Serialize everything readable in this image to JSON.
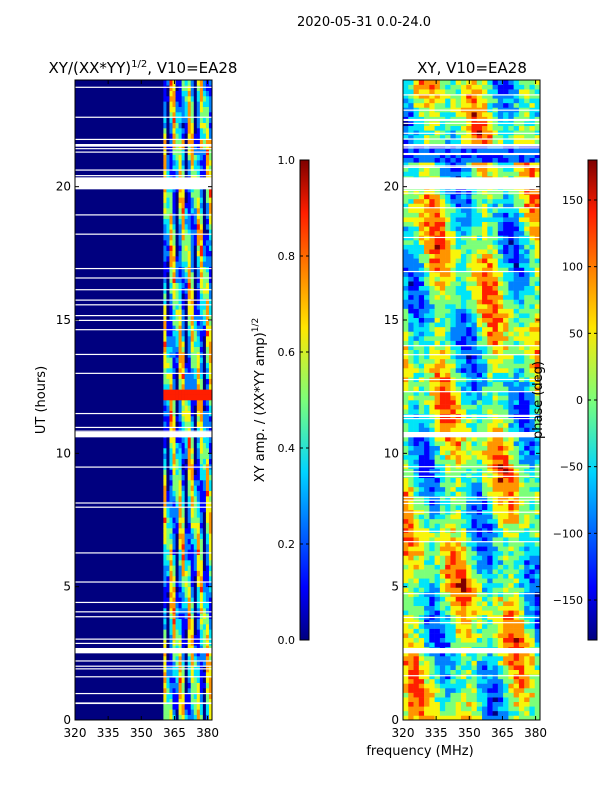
{
  "figure": {
    "suptitle": "2020-05-31 0.0-24.0",
    "xlabel": "frequency (MHz)",
    "ylabel": "UT (hours)"
  },
  "colormap": [
    "#00007f",
    "#0000ff",
    "#0080ff",
    "#00e5f8",
    "#7cff79",
    "#f8f50a",
    "#ff9400",
    "#ff1e00",
    "#7f0000"
  ],
  "chart_data": [
    {
      "type": "heatmap",
      "panel": "left",
      "title": "XY/(XX*YY)",
      "title_sup": "1/2",
      "title_suffix": ", V10=EA28",
      "xlabel": "frequency (MHz)",
      "ylabel": "UT (hours)",
      "xlim": [
        320,
        382
      ],
      "ylim": [
        0,
        24
      ],
      "xticks": [
        320,
        335,
        350,
        365,
        380
      ],
      "yticks": [
        0,
        5,
        10,
        15,
        20
      ],
      "data_start_freq": 360,
      "data_channels": [
        362,
        365,
        368,
        372,
        376,
        379
      ],
      "flagged_time_ranges_hours": [
        [
          2.5,
          2.7
        ],
        [
          10.6,
          10.8
        ],
        [
          19.9,
          20.35
        ],
        [
          21.5,
          21.6
        ]
      ],
      "colorbar": {
        "label": "XY amp. / (XX*YY amp)",
        "label_sup": "1/2",
        "range": [
          0.0,
          1.0
        ],
        "ticks": [
          "0.0",
          "0.2",
          "0.4",
          "0.6",
          "0.8",
          "1.0"
        ]
      }
    },
    {
      "type": "heatmap",
      "panel": "right",
      "title": "XY, V10=EA28",
      "xlabel": "frequency (MHz)",
      "ylabel": "",
      "xlim": [
        320,
        382
      ],
      "ylim": [
        0,
        24
      ],
      "xticks": [
        320,
        335,
        350,
        365,
        380
      ],
      "yticks": [
        0,
        5,
        10,
        15,
        20
      ],
      "flagged_time_ranges_hours": [
        [
          2.5,
          2.7
        ],
        [
          10.6,
          10.8
        ],
        [
          19.9,
          20.35
        ],
        [
          21.5,
          21.6
        ]
      ],
      "colorbar": {
        "label": "phase (deg)",
        "range": [
          -180,
          180
        ],
        "ticks": [
          "−150",
          "−100",
          "−50",
          "0",
          "50",
          "100",
          "150"
        ]
      }
    }
  ]
}
